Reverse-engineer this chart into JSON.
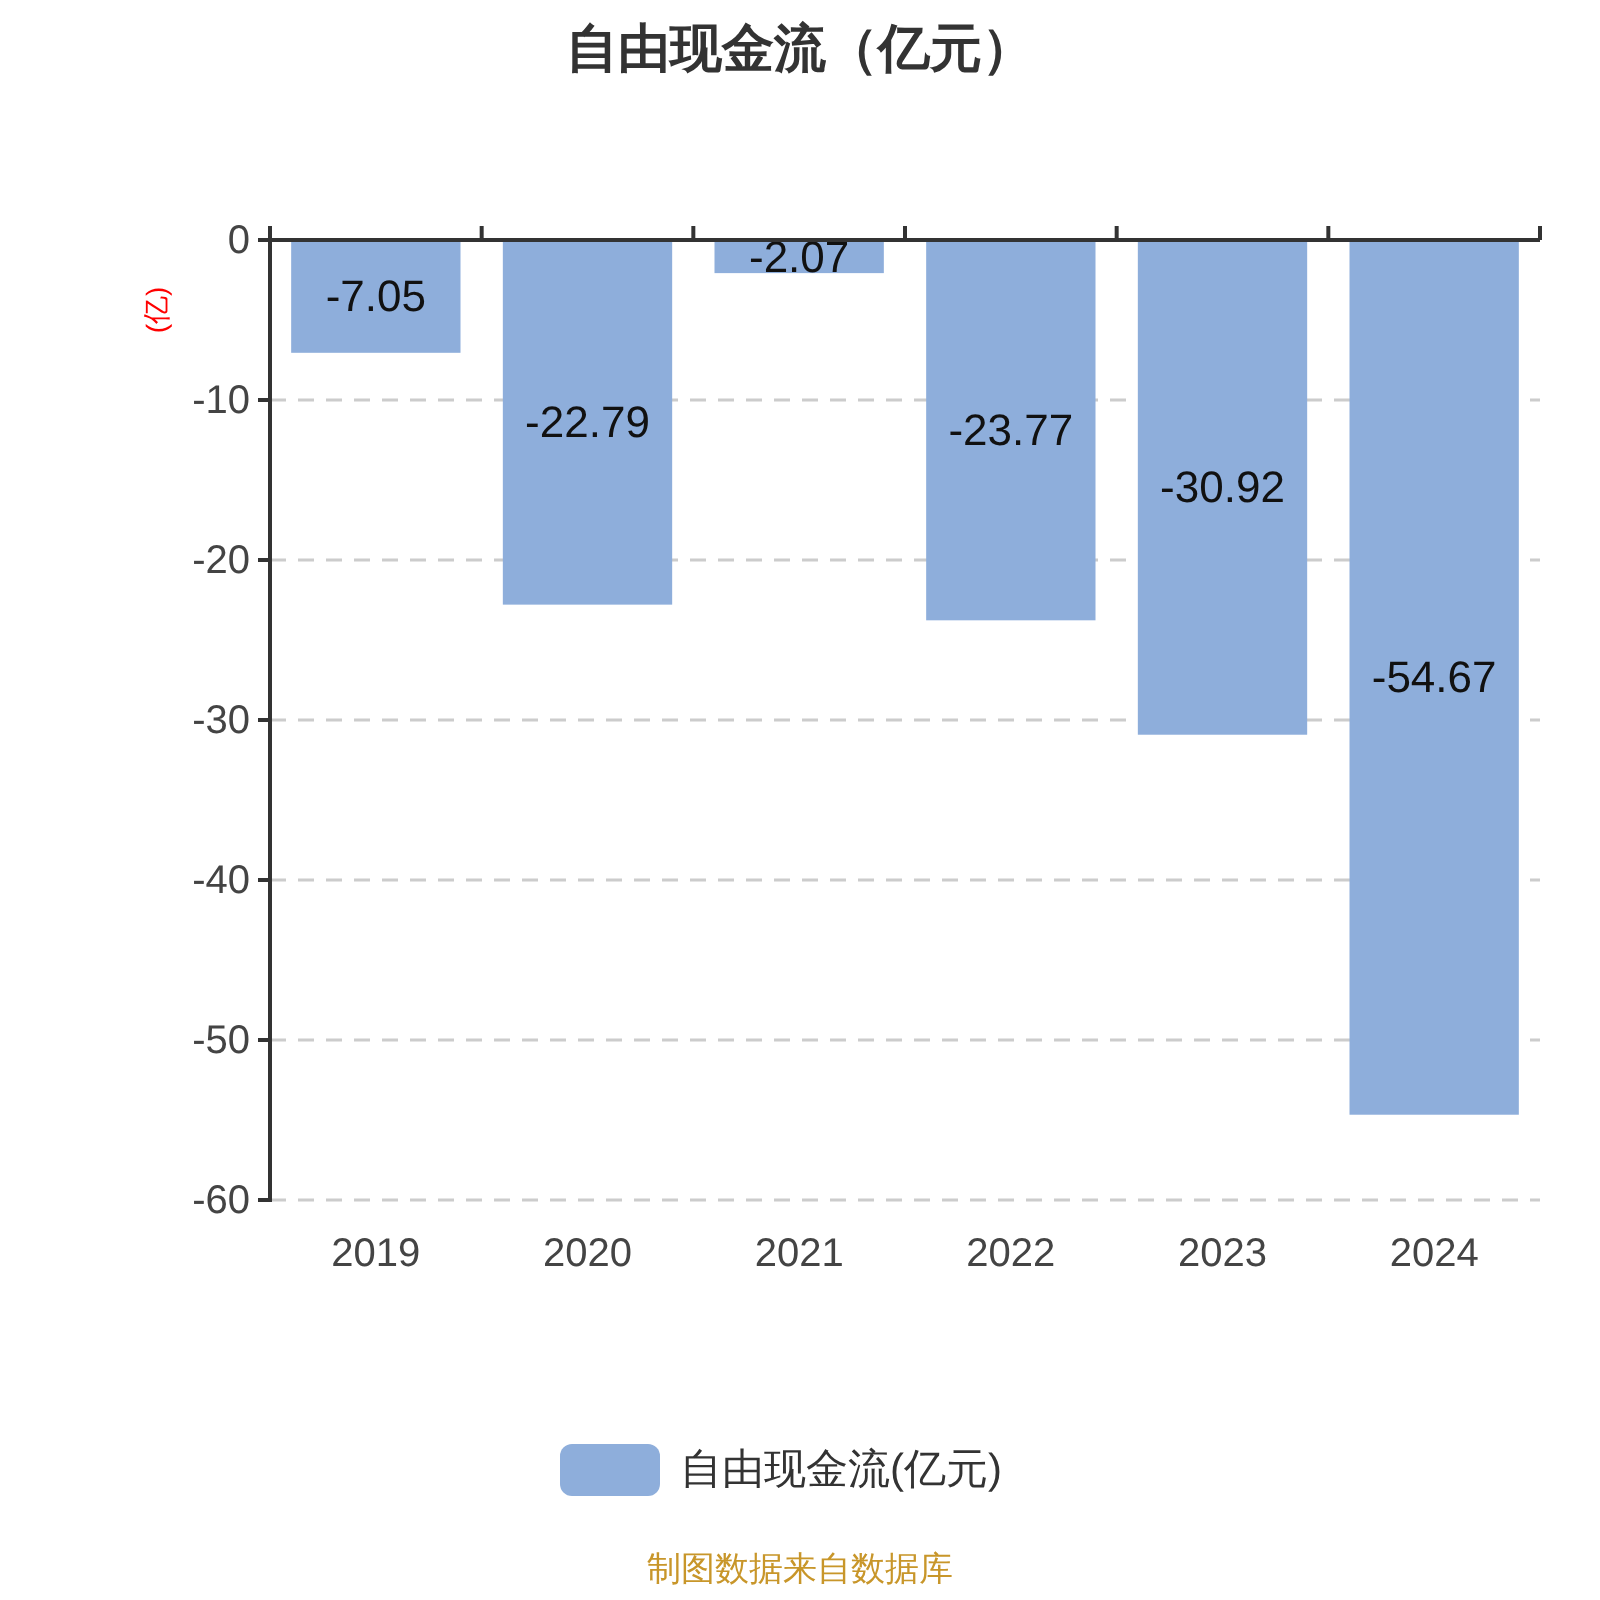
{
  "chart_data": {
    "type": "bar",
    "title": "自由现金流（亿元）",
    "ylabel": "(亿)",
    "categories": [
      "2019",
      "2020",
      "2021",
      "2022",
      "2023",
      "2024"
    ],
    "series": [
      {
        "name": "自由现金流(亿元)",
        "color": "#8eaedb",
        "values": [
          -7.05,
          -22.79,
          -2.07,
          -23.77,
          -30.92,
          -54.67
        ]
      }
    ],
    "ylim": [
      -60,
      0
    ],
    "yticks": [
      -60,
      -50,
      -40,
      -30,
      -20,
      -10,
      0
    ],
    "grid": "y",
    "legend": "bottom",
    "data_labels": true,
    "annotations": [
      "制图数据来自数据库"
    ]
  }
}
